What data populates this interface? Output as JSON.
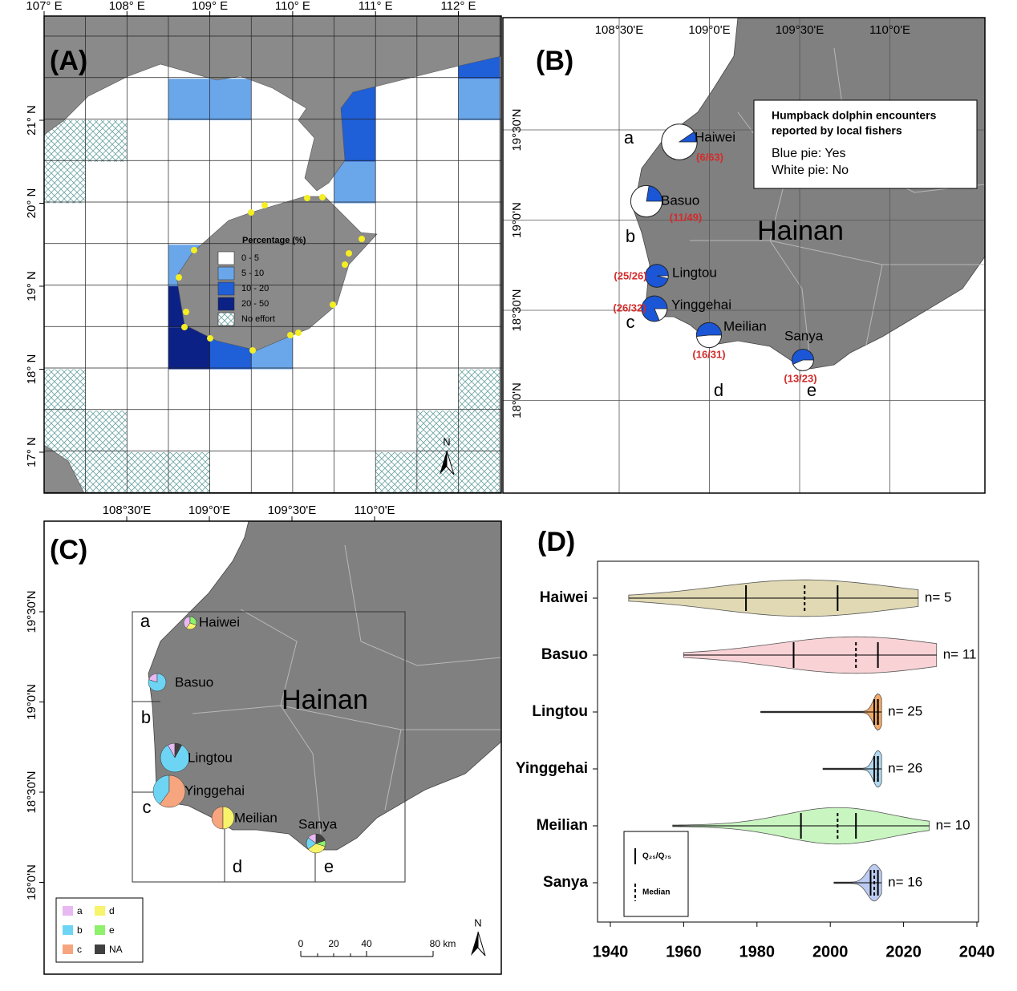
{
  "panel_a": {
    "label": "(A)",
    "lon_ticks": [
      {
        "value": 107,
        "label": "107° E"
      },
      {
        "value": 108,
        "label": "108° E"
      },
      {
        "value": 109,
        "label": "109° E"
      },
      {
        "value": 110,
        "label": "110° E"
      },
      {
        "value": 111,
        "label": "111° E"
      },
      {
        "value": 112,
        "label": "112° E"
      }
    ],
    "lat_ticks": [
      {
        "value": 21,
        "label": "21° N"
      },
      {
        "value": 20,
        "label": "20° N"
      },
      {
        "value": 19,
        "label": "19° N"
      },
      {
        "value": 18,
        "label": "18° N"
      },
      {
        "value": 17,
        "label": "17° N"
      }
    ],
    "legend_title": "Percentage (%)",
    "classes": [
      {
        "label": "0 - 5",
        "color": "#ffffff"
      },
      {
        "label": "5 - 10",
        "color": "#6aa6ea"
      },
      {
        "label": "10 - 20",
        "color": "#1f5fd8"
      },
      {
        "label": "20 - 50",
        "color": "#0b2185"
      },
      {
        "label": "No effort",
        "pattern": "cross-hatch"
      }
    ],
    "cells": [
      {
        "lon": 108.5,
        "lat": 21.0,
        "class": 1
      },
      {
        "lon": 109.0,
        "lat": 21.0,
        "class": 1
      },
      {
        "lon": 112.0,
        "lat": 21.0,
        "class": 1
      },
      {
        "lon": 112.0,
        "lat": 21.5,
        "class": 2
      },
      {
        "lon": 110.5,
        "lat": 21.0,
        "class": 2
      },
      {
        "lon": 110.5,
        "lat": 20.5,
        "class": 2
      },
      {
        "lon": 110.5,
        "lat": 20.0,
        "class": 1
      },
      {
        "lon": 108.5,
        "lat": 19.0,
        "class": 1
      },
      {
        "lon": 108.5,
        "lat": 18.5,
        "class": 3
      },
      {
        "lon": 108.5,
        "lat": 18.0,
        "class": 3
      },
      {
        "lon": 109.0,
        "lat": 18.0,
        "class": 2
      },
      {
        "lon": 109.5,
        "lat": 18.0,
        "class": 1
      },
      {
        "lon": 107.0,
        "lat": 20.5,
        "class": 4
      },
      {
        "lon": 107.5,
        "lat": 20.5,
        "class": 4
      },
      {
        "lon": 107.0,
        "lat": 20.0,
        "class": 4
      },
      {
        "lon": 107.0,
        "lat": 17.5,
        "class": 4
      },
      {
        "lon": 112.0,
        "lat": 17.5,
        "class": 4
      },
      {
        "lon": 107.0,
        "lat": 17.0,
        "class": 4
      },
      {
        "lon": 107.5,
        "lat": 17.0,
        "class": 4
      },
      {
        "lon": 111.5,
        "lat": 17.0,
        "class": 4
      },
      {
        "lon": 112.0,
        "lat": 17.0,
        "class": 4
      },
      {
        "lon": 107.0,
        "lat": 16.5,
        "class": 4
      },
      {
        "lon": 107.5,
        "lat": 16.5,
        "class": 4
      },
      {
        "lon": 108.0,
        "lat": 16.5,
        "class": 4
      },
      {
        "lon": 108.5,
        "lat": 16.5,
        "class": 4
      },
      {
        "lon": 111.0,
        "lat": 16.5,
        "class": 4
      },
      {
        "lon": 111.5,
        "lat": 16.5,
        "class": 4
      },
      {
        "lon": 112.0,
        "lat": 16.5,
        "class": 4
      }
    ],
    "north": "N"
  },
  "panel_b": {
    "label": "(B)",
    "lon_ticks": [
      {
        "value": 108.5,
        "label": "108°30'E"
      },
      {
        "value": 109.0,
        "label": "109°0'E"
      },
      {
        "value": 109.5,
        "label": "109°30'E"
      },
      {
        "value": 110.0,
        "label": "110°0'E"
      }
    ],
    "lat_ticks": [
      {
        "value": 19.5,
        "label": "19°30'N"
      },
      {
        "value": 19.0,
        "label": "19°0'N"
      },
      {
        "value": 18.5,
        "label": "18°30'N"
      },
      {
        "value": 18.0,
        "label": "18°0'N"
      }
    ],
    "legend_title": [
      "Humpback dolphin encounters",
      "reported by local fishers"
    ],
    "legend_items": [
      "Blue pie: Yes",
      "White pie: No"
    ],
    "yes_color": "#1a56d6",
    "no_color": "#ffffff",
    "island": "Hainan",
    "regions": [
      "a",
      "b",
      "c",
      "d",
      "e"
    ],
    "sites": [
      {
        "name": "Haiwei",
        "yes": 6,
        "total": 63,
        "count_label": "(6/63)"
      },
      {
        "name": "Basuo",
        "yes": 11,
        "total": 49,
        "count_label": "(11/49)"
      },
      {
        "name": "Lingtou",
        "yes": 25,
        "total": 26,
        "count_label": "(25/26)"
      },
      {
        "name": "Yinggehai",
        "yes": 26,
        "total": 32,
        "count_label": "(26/32)"
      },
      {
        "name": "Meilian",
        "yes": 16,
        "total": 31,
        "count_label": "(16/31)"
      },
      {
        "name": "Sanya",
        "yes": 13,
        "total": 23,
        "count_label": "(13/23)"
      }
    ]
  },
  "panel_c": {
    "label": "(C)",
    "lon_ticks": [
      {
        "value": 108.5,
        "label": "108°30'E"
      },
      {
        "value": 109.0,
        "label": "109°0'E"
      },
      {
        "value": 109.5,
        "label": "109°30'E"
      },
      {
        "value": 110.0,
        "label": "110°0'E"
      }
    ],
    "lat_ticks": [
      {
        "value": 19.5,
        "label": "19°30'N"
      },
      {
        "value": 19.0,
        "label": "19°0'N"
      },
      {
        "value": 18.5,
        "label": "18°30'N"
      },
      {
        "value": 18.0,
        "label": "18°0'N"
      }
    ],
    "island": "Hainan",
    "regions": [
      "a",
      "b",
      "c",
      "d",
      "e"
    ],
    "legend": [
      {
        "label": "a",
        "color": "#e8b8f2"
      },
      {
        "label": "b",
        "color": "#6dd5f3"
      },
      {
        "label": "c",
        "color": "#f6a57f"
      },
      {
        "label": "d",
        "color": "#f7f36a"
      },
      {
        "label": "e",
        "color": "#8ef06b"
      },
      {
        "label": "NA",
        "color": "#404040"
      }
    ],
    "sites": [
      {
        "name": "Haiwei",
        "shares": [
          40,
          0,
          0,
          30,
          30,
          0
        ]
      },
      {
        "name": "Basuo",
        "shares": [
          20,
          80,
          0,
          0,
          0,
          0
        ]
      },
      {
        "name": "Lingtou",
        "shares": [
          8,
          84,
          0,
          0,
          0,
          8
        ]
      },
      {
        "name": "Yinggehai",
        "shares": [
          0,
          40,
          60,
          0,
          0,
          0
        ]
      },
      {
        "name": "Meilian",
        "shares": [
          0,
          0,
          50,
          50,
          0,
          0
        ]
      },
      {
        "name": "Sanya",
        "shares": [
          15,
          20,
          0,
          35,
          10,
          20
        ]
      }
    ],
    "scale_labels": [
      "0",
      "20",
      "40",
      "80 km"
    ],
    "north": "N"
  },
  "panel_d": {
    "label": "(D)",
    "xlim": [
      1940,
      2040
    ],
    "xticks": [
      1940,
      1960,
      1980,
      2000,
      2020,
      2040
    ],
    "legend": [
      "Q₂₅/Q₇₅",
      "Median"
    ],
    "sites": [
      {
        "name": "Haiwei",
        "color": "#e0d9b3",
        "min": 1945,
        "q25": 1977,
        "median": 1993,
        "q75": 2002,
        "max": 2024,
        "n": 5,
        "n_label": "n= 5"
      },
      {
        "name": "Basuo",
        "color": "#f9d2d6",
        "min": 1960,
        "q25": 1990,
        "median": 2007,
        "q75": 2013,
        "max": 2029,
        "n": 11,
        "n_label": "n= 11"
      },
      {
        "name": "Lingtou",
        "color": "#f0a868",
        "min": 1981,
        "q25": 2012,
        "median": 2013,
        "q75": 2013,
        "max": 2014,
        "n": 25,
        "n_label": "n= 25"
      },
      {
        "name": "Yinggehai",
        "color": "#b0d8f0",
        "min": 1998,
        "q25": 2012,
        "median": 2013,
        "q75": 2013,
        "max": 2014,
        "n": 26,
        "n_label": "n= 26"
      },
      {
        "name": "Meilian",
        "color": "#c9f5c1",
        "min": 1957,
        "q25": 1992,
        "median": 2002,
        "q75": 2007,
        "max": 2027,
        "n": 10,
        "n_label": "n= 10"
      },
      {
        "name": "Sanya",
        "color": "#bccbf2",
        "min": 2001,
        "q25": 2011,
        "median": 2012,
        "q75": 2013,
        "max": 2014,
        "n": 16,
        "n_label": "n= 16"
      }
    ]
  }
}
